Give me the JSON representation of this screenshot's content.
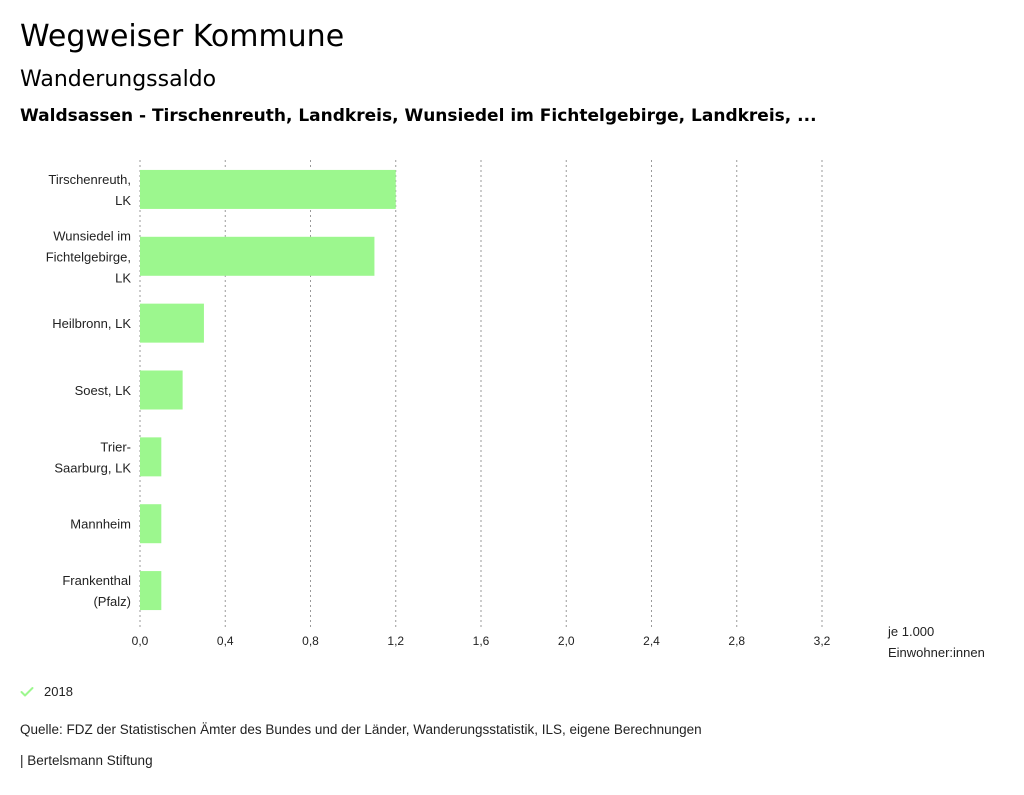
{
  "header": {
    "title": "Wegweiser Kommune",
    "subtitle": "Wanderungssaldo",
    "region": "Waldsassen - Tirschenreuth, Landkreis, Wunsiedel im Fichtelgebirge, Landkreis, ..."
  },
  "chart_data": {
    "type": "bar",
    "orientation": "horizontal",
    "categories": [
      [
        "Tirschenreuth,",
        "LK"
      ],
      [
        "Wunsiedel im",
        "Fichtelgebirge,",
        "LK"
      ],
      [
        "Heilbronn, LK"
      ],
      [
        "Soest, LK"
      ],
      [
        "Trier-",
        "Saarburg, LK"
      ],
      [
        "Mannheim"
      ],
      [
        "Frankenthal",
        "(Pfalz)"
      ]
    ],
    "series": [
      {
        "name": "2018",
        "values": [
          1.2,
          1.1,
          0.3,
          0.2,
          0.1,
          0.1,
          0.1
        ]
      }
    ],
    "xlim": [
      0,
      3.2
    ],
    "xticks": [
      "0,0",
      "0,4",
      "0,8",
      "1,2",
      "1,6",
      "2,0",
      "2,4",
      "2,8",
      "3,2"
    ],
    "xtick_values": [
      0,
      0.4,
      0.8,
      1.2,
      1.6,
      2.0,
      2.4,
      2.8,
      3.2
    ],
    "grid": "vertical dotted",
    "unit_label": [
      "je 1.000",
      "Einwohner:innen"
    ],
    "bar_color": "#9cf78e"
  },
  "legend": {
    "label": "2018",
    "icon": "check-icon",
    "color": "#9cf78e"
  },
  "footer": {
    "source": "Quelle: FDZ der Statistischen Ämter des Bundes und der Länder, Wanderungsstatistik, ILS, eigene Berechnungen",
    "credit": "| Bertelsmann Stiftung"
  }
}
